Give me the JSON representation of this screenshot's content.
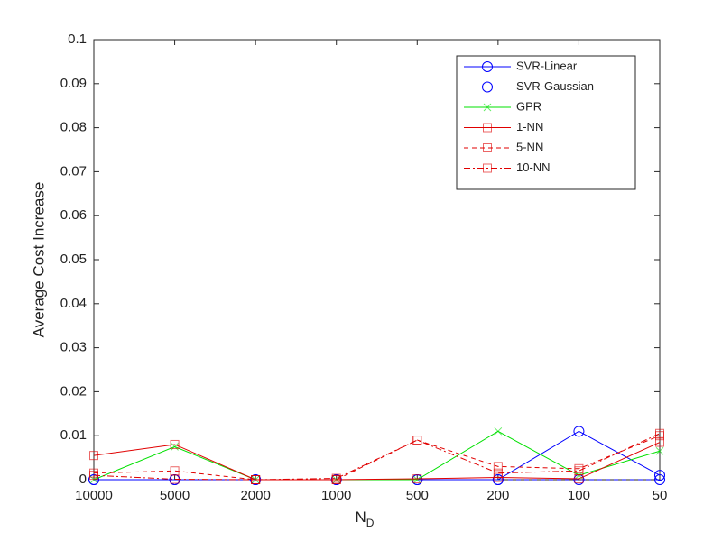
{
  "chart_data": {
    "type": "line",
    "x_label": {
      "text": "N",
      "subscript": "D"
    },
    "y_label": "Average Cost Increase",
    "categories": [
      "10000",
      "5000",
      "2000",
      "1000",
      "500",
      "200",
      "100",
      "50"
    ],
    "series": [
      {
        "name": "SVR-Linear",
        "color": "#0000ff",
        "dash": "solid",
        "marker": "circle",
        "values": [
          0,
          0,
          0,
          0,
          0,
          0,
          0.011,
          0.001
        ]
      },
      {
        "name": "SVR-Gaussian",
        "color": "#0000ff",
        "dash": "dashed",
        "marker": "circle",
        "values": [
          0,
          0,
          0,
          0,
          0,
          0,
          0,
          0
        ]
      },
      {
        "name": "GPR",
        "color": "#00e000",
        "dash": "solid",
        "marker": "x",
        "values": [
          0,
          0.0075,
          0,
          0,
          0,
          0.011,
          0.001,
          0.0065
        ]
      },
      {
        "name": "1-NN",
        "color": "#e00000",
        "dash": "solid",
        "marker": "square",
        "values": [
          0.0055,
          0.008,
          0,
          0,
          0.0002,
          0.0005,
          0.0002,
          0.0085
        ]
      },
      {
        "name": "5-NN",
        "color": "#e00000",
        "dash": "dashed",
        "marker": "square",
        "values": [
          0.0015,
          0.002,
          0,
          0,
          0.009,
          0.003,
          0.0025,
          0.01
        ]
      },
      {
        "name": "10-NN",
        "color": "#e00000",
        "dash": "dashdot",
        "marker": "square",
        "values": [
          0.001,
          0.0001,
          0,
          0.0003,
          0.009,
          0.0015,
          0.002,
          0.0105
        ]
      }
    ],
    "ylim": [
      0,
      0.1
    ],
    "yticks": [
      0,
      0.01,
      0.02,
      0.03,
      0.04,
      0.05,
      0.06,
      0.07,
      0.08,
      0.09,
      0.1
    ],
    "grid": false,
    "legend": "upper right"
  }
}
